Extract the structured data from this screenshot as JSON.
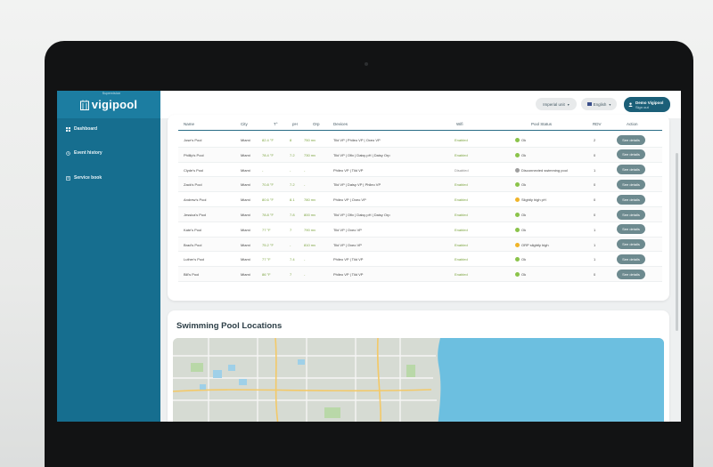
{
  "app": {
    "logo_sup": "Supervision",
    "logo_text": "vigipool"
  },
  "sidebar": {
    "items": [
      {
        "label": "Dashboard",
        "icon": "grid-icon"
      },
      {
        "label": "Event history",
        "icon": "history-icon"
      },
      {
        "label": "Service book",
        "icon": "book-icon"
      }
    ]
  },
  "topbar": {
    "unit_select": "Imperial unit",
    "language_select": "English",
    "user_name": "Demo Vigipool",
    "sign_out": "Sign out"
  },
  "table": {
    "headers": [
      "Name",
      "City",
      "T°",
      "pH",
      "Orp",
      "Devices",
      "Wifi",
      "Pool Status",
      "RDV",
      "Action"
    ],
    "button_label": "See details",
    "rows": [
      {
        "name": "Jose's Pool",
        "city": "Miami",
        "t": "82.4 °F",
        "ph": "8",
        "orp": "750 mv",
        "devices": "Tild VP | Phileo VP | Oxeo VP",
        "wifi": "Enabled",
        "status": "Ok",
        "status_color": "#8bc34a",
        "rdv": "2"
      },
      {
        "name": "Phillip's Pool",
        "city": "Miami",
        "t": "78.4 °F",
        "ph": "7.2",
        "orp": "730 mv",
        "devices": "Tild VP | Ofix | Daisy pH | Daisy Orp",
        "wifi": "Enabled",
        "status": "Ok",
        "status_color": "#8bc34a",
        "rdv": "0"
      },
      {
        "name": "Clyde's Pool",
        "city": "Miami",
        "t": "-",
        "ph": "-",
        "orp": "-",
        "devices": "Phileo VP | Tild VP",
        "wifi": "Disabled",
        "status": "Disconnected swimming pool",
        "status_color": "#9e9e9e",
        "rdv": "1"
      },
      {
        "name": "Zack's Pool",
        "city": "Miami",
        "t": "70.8 °F",
        "ph": "7.2",
        "orp": "-",
        "devices": "Tild VP | Daisy VP | Phileo VP",
        "wifi": "Enabled",
        "status": "Ok",
        "status_color": "#8bc34a",
        "rdv": "0"
      },
      {
        "name": "Andrew's Pool",
        "city": "Miami",
        "t": "80.6 °F",
        "ph": "8.1",
        "orp": "780 mv",
        "devices": "Phileo VP | Oxeo VP",
        "wifi": "Enabled",
        "status": "Slightly high pH",
        "status_color": "#f0b429",
        "rdv": "0"
      },
      {
        "name": "Jessica's Pool",
        "city": "Miami",
        "t": "78.8 °F",
        "ph": "7.8",
        "orp": "800 mv",
        "devices": "Tild VP | Ofix | Daisy pH | Daisy Orp",
        "wifi": "Enabled",
        "status": "Ok",
        "status_color": "#8bc34a",
        "rdv": "0"
      },
      {
        "name": "Kate's Pool",
        "city": "Miami",
        "t": "77 °F",
        "ph": "7",
        "orp": "790 mv",
        "devices": "Tild VP | Oxeo VP",
        "wifi": "Enabled",
        "status": "Ok",
        "status_color": "#8bc34a",
        "rdv": "1"
      },
      {
        "name": "Brad's Pool",
        "city": "Miami",
        "t": "75.2 °F",
        "ph": "-",
        "orp": "810 mv",
        "devices": "Tild VP | Oxeo VP",
        "wifi": "Enabled",
        "status": "ORP slightly high",
        "status_color": "#f0b429",
        "rdv": "1"
      },
      {
        "name": "Luther's Pool",
        "city": "Miami",
        "t": "77 °F",
        "ph": "7.4",
        "orp": "-",
        "devices": "Phileo VP | Tild VP",
        "wifi": "Enabled",
        "status": "Ok",
        "status_color": "#8bc34a",
        "rdv": "1"
      },
      {
        "name": "Bill's Pool",
        "city": "Miami",
        "t": "86 °F",
        "ph": "7",
        "orp": "-",
        "devices": "Phileo VP | Tild VP",
        "wifi": "Enabled",
        "status": "Ok",
        "status_color": "#8bc34a",
        "rdv": "0"
      }
    ]
  },
  "map": {
    "title": "Swimming Pool Locations",
    "land_color": "#d6dbd3",
    "water_color": "#6cbfe0"
  }
}
